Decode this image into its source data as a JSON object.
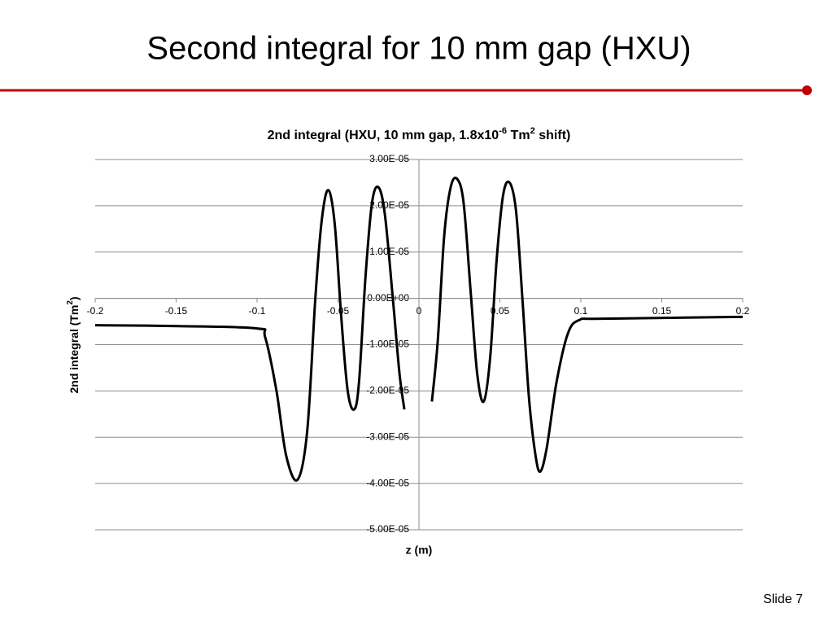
{
  "slide": {
    "title": "Second integral for 10 mm gap (HXU)",
    "footer": "Slide 7"
  },
  "chart_data": {
    "type": "line",
    "title": [
      "2nd integral (HXU, 10 mm gap, 1.8x10",
      "-6",
      " Tm",
      "2",
      " shift)"
    ],
    "x_label": "z (m)",
    "y_label": [
      "2nd integral (Tm",
      "2",
      ")"
    ],
    "color": "#000000",
    "xlim": [
      -0.2,
      0.2
    ],
    "xticks": [
      -0.2,
      -0.15,
      -0.1,
      -0.05,
      0,
      0.05,
      0.1,
      0.15,
      0.2
    ],
    "ylim": [
      -5e-05,
      3e-05
    ],
    "yticks": [
      {
        "value": 3e-05,
        "label": "3.00E-05"
      },
      {
        "value": 2e-05,
        "label": "2.00E-05"
      },
      {
        "value": 1e-05,
        "label": "1.00E-05"
      },
      {
        "value": 0,
        "label": "0.00E+00"
      },
      {
        "value": -1e-05,
        "label": "-1.00E-05"
      },
      {
        "value": -2e-05,
        "label": "-2.00E-05"
      },
      {
        "value": -3e-05,
        "label": "-3.00E-05"
      },
      {
        "value": -4e-05,
        "label": "-4.00E-05"
      },
      {
        "value": -5e-05,
        "label": "-5.00E-05"
      }
    ],
    "grid": true,
    "x": [
      -0.2,
      -0.148,
      -0.1,
      -0.095,
      -0.088,
      -0.082,
      -0.075,
      -0.069,
      -0.064,
      -0.06,
      -0.056,
      -0.052,
      -0.048,
      -0.044,
      -0.04,
      -0.037,
      -0.033,
      -0.029,
      -0.025,
      -0.021,
      -0.016,
      -0.012,
      -0.009,
      0,
      0.008,
      0.0116,
      0.0156,
      0.0196,
      0.0236,
      0.0276,
      0.032,
      0.036,
      0.04,
      0.044,
      0.048,
      0.052,
      0.056,
      0.06,
      0.064,
      0.068,
      0.072,
      0.075,
      0.079,
      0.085,
      0.092,
      0.099,
      0.113,
      0.2
    ],
    "values": [
      -5.8e-06,
      -6e-06,
      -6.5e-06,
      -8.4e-06,
      -2e-05,
      -3.4e-05,
      -3.92e-05,
      -2.86e-05,
      0,
      1.7e-05,
      2.34e-05,
      1.6e-05,
      -4e-06,
      -2e-05,
      -2.4e-05,
      -1.8e-05,
      4.7e-06,
      2.06e-05,
      2.4e-05,
      1.8e-05,
      -5e-07,
      -1.63e-05,
      -2.4e-05,
      null,
      -2.23e-05,
      -9.3e-06,
      1.35e-05,
      2.4e-05,
      2.58e-05,
      2.06e-05,
      1.2e-06,
      -1.63e-05,
      -2.23e-05,
      -1.28e-05,
      8.3e-06,
      2.23e-05,
      2.5e-05,
      1.88e-05,
      -5e-07,
      -2.16e-05,
      -3.39e-05,
      -3.74e-05,
      -3.22e-05,
      -1.81e-05,
      -7.6e-06,
      -4.7e-06,
      -4.4e-06,
      -4e-06
    ]
  }
}
